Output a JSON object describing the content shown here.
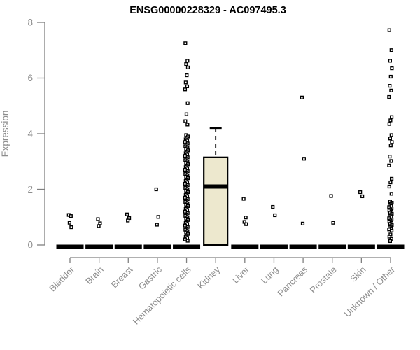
{
  "chart_data": {
    "type": "boxplot",
    "title": "ENSG00000228329 - AC097495.3",
    "ylabel": "Expression",
    "xlabel": "",
    "ylim": [
      0,
      8
    ],
    "yticks": [
      0,
      2,
      4,
      6,
      8
    ],
    "grid": "off",
    "legend": "none",
    "categories": [
      "Bladder",
      "Brain",
      "Breast",
      "Gastric",
      "Hematopoietic cells",
      "Kidney",
      "Liver",
      "Lung",
      "Pancreas",
      "Prostate",
      "Skin",
      "Unknown / Other"
    ],
    "colors": {
      "box_fill": "#ede8ce",
      "box_border": "#000000",
      "point": "#000000",
      "axis": "#8d8d8d",
      "title": "#000000"
    },
    "series": [
      {
        "name": "Bladder",
        "zero_bar": true,
        "points": [
          1.08,
          1.04,
          0.8,
          0.64
        ]
      },
      {
        "name": "Brain",
        "zero_bar": true,
        "points": [
          0.93,
          0.78,
          0.68
        ]
      },
      {
        "name": "Breast",
        "zero_bar": true,
        "points": [
          1.1,
          0.97,
          0.88
        ]
      },
      {
        "name": "Gastric",
        "zero_bar": true,
        "points": [
          2.0,
          1.01,
          0.73
        ]
      },
      {
        "name": "Hematopoietic cells",
        "zero_bar": true,
        "points": [
          7.25,
          6.62,
          6.5,
          6.38,
          6.1,
          5.84,
          5.7,
          5.59,
          5.1,
          4.7,
          4.45,
          4.33,
          3.95,
          3.9,
          3.85,
          3.8,
          3.75,
          3.7,
          3.65,
          3.6,
          3.55,
          3.5,
          3.45,
          3.4,
          3.35,
          3.3,
          3.25,
          3.2,
          3.15,
          3.1,
          3.05,
          3.0,
          2.95,
          2.9,
          2.85,
          2.8,
          2.75,
          2.7,
          2.65,
          2.6,
          2.55,
          2.5,
          2.45,
          2.4,
          2.35,
          2.3,
          2.25,
          2.2,
          2.15,
          2.1,
          2.05,
          2.0,
          1.95,
          1.9,
          1.85,
          1.8,
          1.75,
          1.7,
          1.65,
          1.6,
          1.55,
          1.5,
          1.45,
          1.4,
          1.35,
          1.3,
          1.25,
          1.2,
          1.15,
          1.1,
          1.05,
          1.0,
          0.95,
          0.9,
          0.85,
          0.8,
          0.75,
          0.7,
          0.65,
          0.6,
          0.55,
          0.5,
          0.45,
          0.4,
          0.35,
          0.3,
          0.25,
          0.2,
          0.15
        ]
      },
      {
        "name": "Kidney",
        "zero_bar": false,
        "points": [],
        "box": {
          "whisker_high": 4.2,
          "q3": 3.15,
          "median": 2.1,
          "q1": 0,
          "whisker_low": 0
        }
      },
      {
        "name": "Liver",
        "zero_bar": true,
        "points": [
          1.66,
          0.99,
          0.83,
          0.75
        ]
      },
      {
        "name": "Lung",
        "zero_bar": true,
        "points": [
          1.37,
          1.07
        ]
      },
      {
        "name": "Pancreas",
        "zero_bar": true,
        "points": [
          5.3,
          3.1,
          0.77
        ]
      },
      {
        "name": "Prostate",
        "zero_bar": true,
        "points": [
          1.76,
          0.8
        ]
      },
      {
        "name": "Skin",
        "zero_bar": true,
        "points": [
          1.9,
          1.75
        ]
      },
      {
        "name": "Unknown / Other",
        "zero_bar": true,
        "points": [
          7.72,
          7.0,
          6.62,
          6.35,
          6.05,
          5.72,
          5.55,
          5.32,
          4.6,
          4.48,
          4.35,
          3.95,
          3.83,
          3.7,
          3.58,
          3.18,
          3.02,
          2.86,
          2.38,
          2.25,
          2.1,
          1.84,
          1.56,
          1.52,
          1.48,
          1.44,
          1.4,
          1.36,
          1.32,
          1.28,
          1.24,
          1.2,
          1.16,
          1.12,
          1.08,
          1.04,
          1.0,
          0.96,
          0.92,
          0.88,
          0.84,
          0.8,
          0.76,
          0.72,
          0.68,
          0.64,
          0.6,
          0.56,
          0.52,
          0.38,
          0.3,
          0.22,
          0.14
        ]
      }
    ]
  }
}
